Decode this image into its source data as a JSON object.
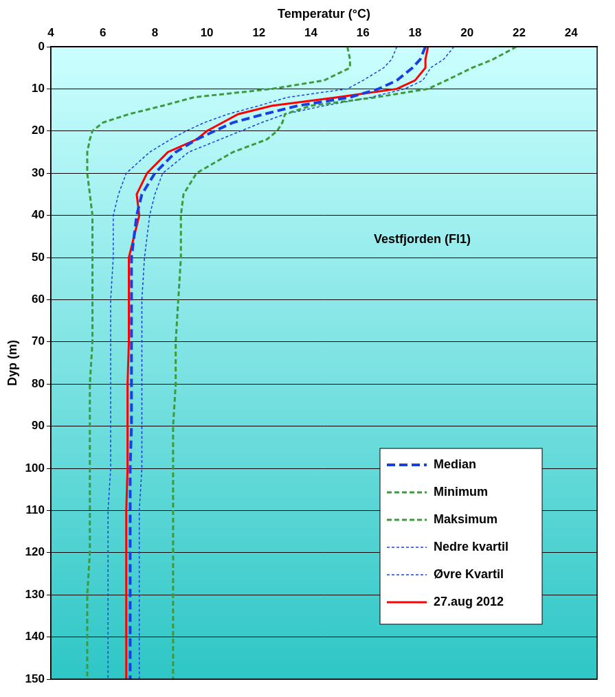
{
  "chart_data": {
    "type": "line",
    "x_label": "Temperatur (°C)",
    "y_label": "Dyp (m)",
    "annotation": "Vestfjorden (Fl1)",
    "xlim": [
      4,
      25
    ],
    "xticks": [
      4,
      6,
      8,
      10,
      12,
      14,
      16,
      18,
      20,
      22,
      24
    ],
    "ylim": [
      0,
      150
    ],
    "yticks": [
      0,
      10,
      20,
      30,
      40,
      50,
      60,
      70,
      80,
      90,
      100,
      110,
      120,
      130,
      140,
      150
    ],
    "y": [
      0,
      3,
      5,
      8,
      10,
      12,
      14,
      16,
      18,
      20,
      22,
      25,
      30,
      35,
      40,
      45,
      50,
      60,
      70,
      80,
      90,
      100,
      110,
      120,
      130,
      140,
      150
    ],
    "grid": "y",
    "legend": "lower right",
    "series": [
      {
        "name": "Median",
        "color": "#1a3fe0",
        "line_style": "dashed",
        "values": [
          18.4,
          18.2,
          17.9,
          17.3,
          16.6,
          15.5,
          13.5,
          12.2,
          11.0,
          10.3,
          9.6,
          8.8,
          8.0,
          7.5,
          7.3,
          7.2,
          7.1,
          7.1,
          7.1,
          7.1,
          7.1,
          7.05,
          7.05,
          7.05,
          7.05,
          7.05,
          7.05
        ]
      },
      {
        "name": "Minimum",
        "color": "#3c9a3c",
        "line_style": "short_dashed",
        "values": [
          15.4,
          15.5,
          15.5,
          14.5,
          12.5,
          9.5,
          8.3,
          7.0,
          6.0,
          5.6,
          5.5,
          5.4,
          5.4,
          5.5,
          5.6,
          5.6,
          5.6,
          5.6,
          5.6,
          5.5,
          5.5,
          5.5,
          5.5,
          5.5,
          5.4,
          5.4,
          5.4
        ]
      },
      {
        "name": "Maksimum",
        "color": "#3c9a3c",
        "line_style": "short_dashed",
        "values": [
          21.9,
          21.0,
          20.2,
          19.2,
          18.5,
          16.5,
          14.0,
          13.0,
          12.9,
          12.7,
          12.3,
          11.0,
          9.6,
          9.1,
          9.0,
          9.0,
          9.0,
          8.9,
          8.8,
          8.8,
          8.7,
          8.7,
          8.7,
          8.7,
          8.7,
          8.7,
          8.7
        ]
      },
      {
        "name": "Nedre kvartil",
        "color": "#1a3fe0",
        "line_style": "dotted",
        "values": [
          17.3,
          17.1,
          16.8,
          16.0,
          15.4,
          13.1,
          12.0,
          10.8,
          9.9,
          9.2,
          8.6,
          7.8,
          6.9,
          6.6,
          6.4,
          6.4,
          6.4,
          6.3,
          6.3,
          6.3,
          6.3,
          6.3,
          6.2,
          6.2,
          6.2,
          6.2,
          6.2
        ]
      },
      {
        "name": "Øvre Kvartil",
        "color": "#1a3fe0",
        "line_style": "dotted",
        "values": [
          19.5,
          19.1,
          18.6,
          18.3,
          17.6,
          16.3,
          14.5,
          13.0,
          12.1,
          11.3,
          10.5,
          9.3,
          8.3,
          8.0,
          7.8,
          7.7,
          7.6,
          7.5,
          7.5,
          7.5,
          7.5,
          7.5,
          7.4,
          7.4,
          7.4,
          7.4,
          7.4
        ]
      },
      {
        "name": "27.aug 2012",
        "color": "#ff0000",
        "line_style": "solid",
        "values": [
          18.5,
          18.4,
          18.4,
          18.0,
          17.3,
          15.0,
          12.5,
          11.2,
          10.6,
          10.0,
          9.6,
          8.5,
          7.7,
          7.3,
          7.4,
          7.2,
          7.0,
          7.0,
          7.0,
          6.95,
          6.95,
          6.95,
          6.9,
          6.9,
          6.9,
          6.9,
          6.9
        ]
      }
    ]
  }
}
